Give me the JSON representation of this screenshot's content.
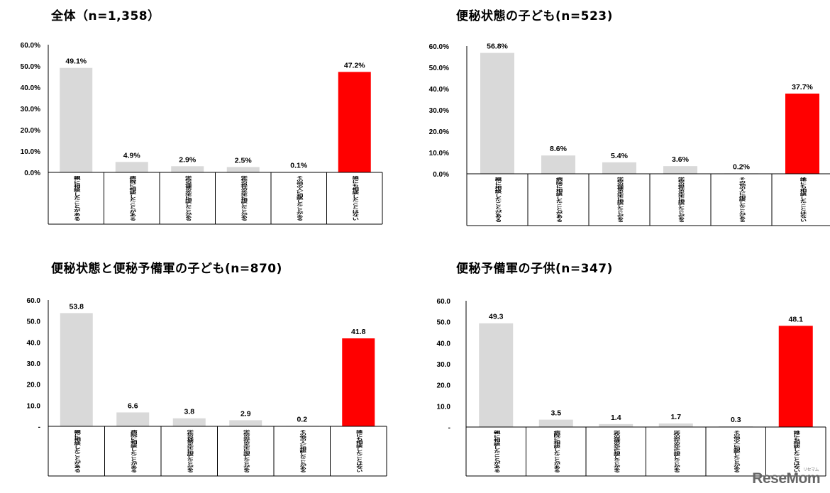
{
  "colors": {
    "bar_default": "#d9d9d9",
    "bar_highlight": "#ff0000",
    "axis": "#000000"
  },
  "watermark": {
    "text": "ReseMom",
    "small": "リセマム"
  },
  "chart_data": [
    {
      "type": "bar",
      "title": "全体（n=1,358）",
      "categories": [
        "親に相談したことがある",
        "病院に相談したことがある",
        "学校の保健の先生に相談したことがある",
        "学校の担任の先生に相談したことがある",
        "その他の人に相談したことがある",
        "誰にも相談したことはない"
      ],
      "values": [
        49.1,
        4.9,
        2.9,
        2.5,
        0.1,
        47.2
      ],
      "value_labels": [
        "49.1%",
        "4.9%",
        "2.9%",
        "2.5%",
        "0.1%",
        "47.2%"
      ],
      "y_ticks": [
        "0.0%",
        "10.0%",
        "20.0%",
        "30.0%",
        "40.0%",
        "50.0%",
        "60.0%"
      ],
      "ylim": [
        0,
        60
      ],
      "highlight_index": 5
    },
    {
      "type": "bar",
      "title": "便秘状態の子ども(n=523)",
      "categories": [
        "親に相談したことがある",
        "病院に相談したことがある",
        "学校の保健の先生に相談したことがある",
        "学校の担任の先生に相談したことがある",
        "その他の人に相談したことがある",
        "誰にも相談したことはない"
      ],
      "values": [
        56.8,
        8.6,
        5.4,
        3.6,
        0.2,
        37.7
      ],
      "value_labels": [
        "56.8%",
        "8.6%",
        "5.4%",
        "3.6%",
        "0.2%",
        "37.7%"
      ],
      "y_ticks": [
        "0.0%",
        "10.0%",
        "20.0%",
        "30.0%",
        "40.0%",
        "50.0%",
        "60.0%"
      ],
      "ylim": [
        0,
        60
      ],
      "highlight_index": 5
    },
    {
      "type": "bar",
      "title": "便秘状態と便秘予備軍の子ども(n=870)",
      "categories": [
        "親に相談したことがある",
        "病院に相談したことがある",
        "学校の保健の先生に相談したことがある",
        "学校の担任の先生に相談したことがある",
        "その他の人に相談したことがある",
        "誰にも相談したことはない"
      ],
      "values": [
        53.8,
        6.6,
        3.8,
        2.9,
        0.2,
        41.8
      ],
      "value_labels": [
        "53.8",
        "6.6",
        "3.8",
        "2.9",
        "0.2",
        "41.8"
      ],
      "y_ticks": [
        "-",
        "10.0",
        "20.0",
        "30.0",
        "40.0",
        "50.0",
        "60.0"
      ],
      "ylim": [
        0,
        60
      ],
      "highlight_index": 5
    },
    {
      "type": "bar",
      "title": "便秘予備軍の子供(n=347)",
      "categories": [
        "親に相談したことがある",
        "病院に相談したことがある",
        "学校の保健の先生に相談したことがある",
        "学校の担任の先生に相談したことがある",
        "その他の人に相談したことがある",
        "誰にも相談したことはない"
      ],
      "values": [
        49.3,
        3.5,
        1.4,
        1.7,
        0.3,
        48.1
      ],
      "value_labels": [
        "49.3",
        "3.5",
        "1.4",
        "1.7",
        "0.3",
        "48.1"
      ],
      "y_ticks": [
        "-",
        "10.0",
        "20.0",
        "30.0",
        "40.0",
        "50.0",
        "60.0"
      ],
      "ylim": [
        0,
        60
      ],
      "highlight_index": 5
    }
  ]
}
